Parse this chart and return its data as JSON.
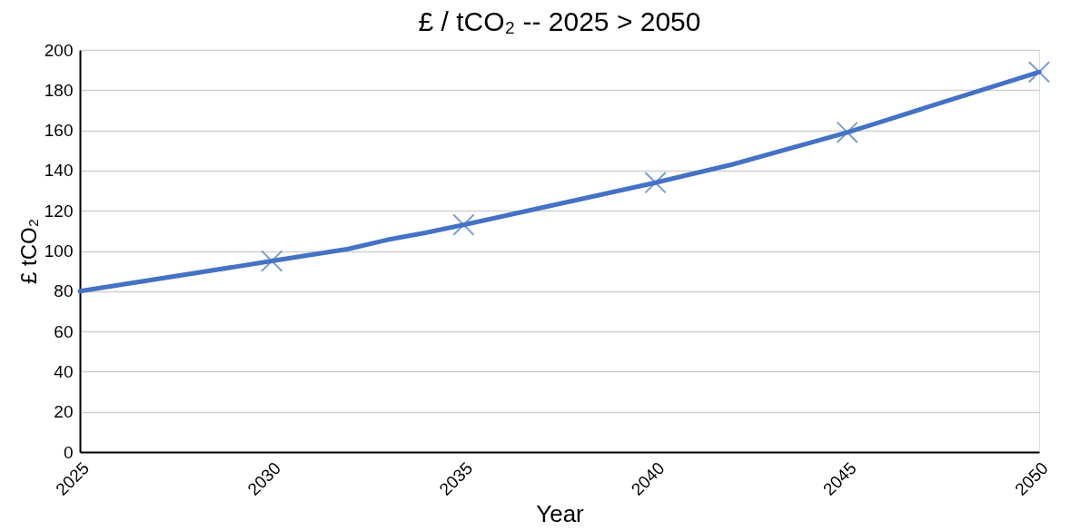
{
  "chart_data": {
    "type": "line",
    "title": "£ / tCO₂ -- 2025 > 2050",
    "xlabel": "Year",
    "ylabel": "£ tCO₂",
    "series": [
      {
        "type": "line",
        "color": "#4472c4",
        "marker": "none",
        "x": [
          2025,
          2030,
          2032,
          2033,
          2034,
          2035,
          2040,
          2042,
          2045,
          2046,
          2047,
          2050
        ],
        "values": [
          80,
          95,
          101,
          105.5,
          109,
          113,
          134,
          143,
          159,
          165,
          171,
          189
        ]
      },
      {
        "type": "scatter",
        "color": "#4472c4",
        "marker": "cross",
        "x": [
          2030,
          2035,
          2040,
          2045,
          2050
        ],
        "values": [
          95,
          113,
          134,
          159,
          189
        ]
      }
    ],
    "xlim": [
      2025,
      2050
    ],
    "xticks": [
      2025,
      2030,
      2035,
      2040,
      2045,
      2050
    ],
    "ylim": [
      0,
      200
    ],
    "yticks": [
      0,
      20,
      40,
      60,
      80,
      100,
      120,
      140,
      160,
      180,
      200
    ],
    "grid": "y"
  }
}
